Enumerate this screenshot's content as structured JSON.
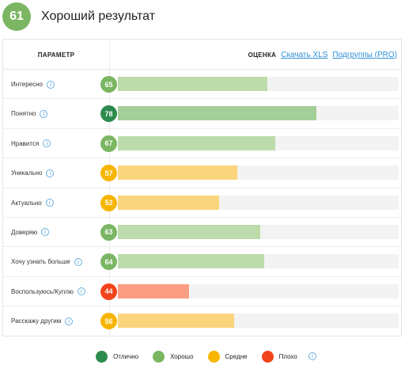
{
  "header": {
    "score": "61",
    "title": "Хороший результат",
    "score_color": "#7bb663"
  },
  "table": {
    "param_header": "ПАРАМЕТР",
    "score_header": "ОЦЕНКА",
    "download_link": "Скачать XLS",
    "subgroups_link": "Подгруппы (PRO)"
  },
  "rows": [
    {
      "label": "Интересно",
      "score": "65",
      "level": "good"
    },
    {
      "label": "Понятно",
      "score": "78",
      "level": "excellent"
    },
    {
      "label": "Нравится",
      "score": "67",
      "level": "good"
    },
    {
      "label": "Уникально",
      "score": "57",
      "level": "average"
    },
    {
      "label": "Актуально",
      "score": "52",
      "level": "average"
    },
    {
      "label": "Доверяю",
      "score": "63",
      "level": "good"
    },
    {
      "label": "Хочу узнать больше",
      "score": "64",
      "level": "good"
    },
    {
      "label": "Воспользуюсь/Куплю",
      "score": "44",
      "level": "bad"
    },
    {
      "label": "Расскажу другим",
      "score": "56",
      "level": "average"
    }
  ],
  "levels": {
    "excellent": {
      "badge": "#2e8b4e",
      "bar": "#a4cf98"
    },
    "good": {
      "badge": "#7bb663",
      "bar": "#bcdcab"
    },
    "average": {
      "badge": "#f7b500",
      "bar": "#fad57d"
    },
    "bad": {
      "badge": "#f2441c",
      "bar": "#fb9e82"
    }
  },
  "legend": [
    {
      "label": "Отлично",
      "color": "#2e8b4e"
    },
    {
      "label": "Хорошо",
      "color": "#7bb663"
    },
    {
      "label": "Средне",
      "color": "#f7b500"
    },
    {
      "label": "Плохо",
      "color": "#f2441c"
    }
  ],
  "info_glyph": "i"
}
